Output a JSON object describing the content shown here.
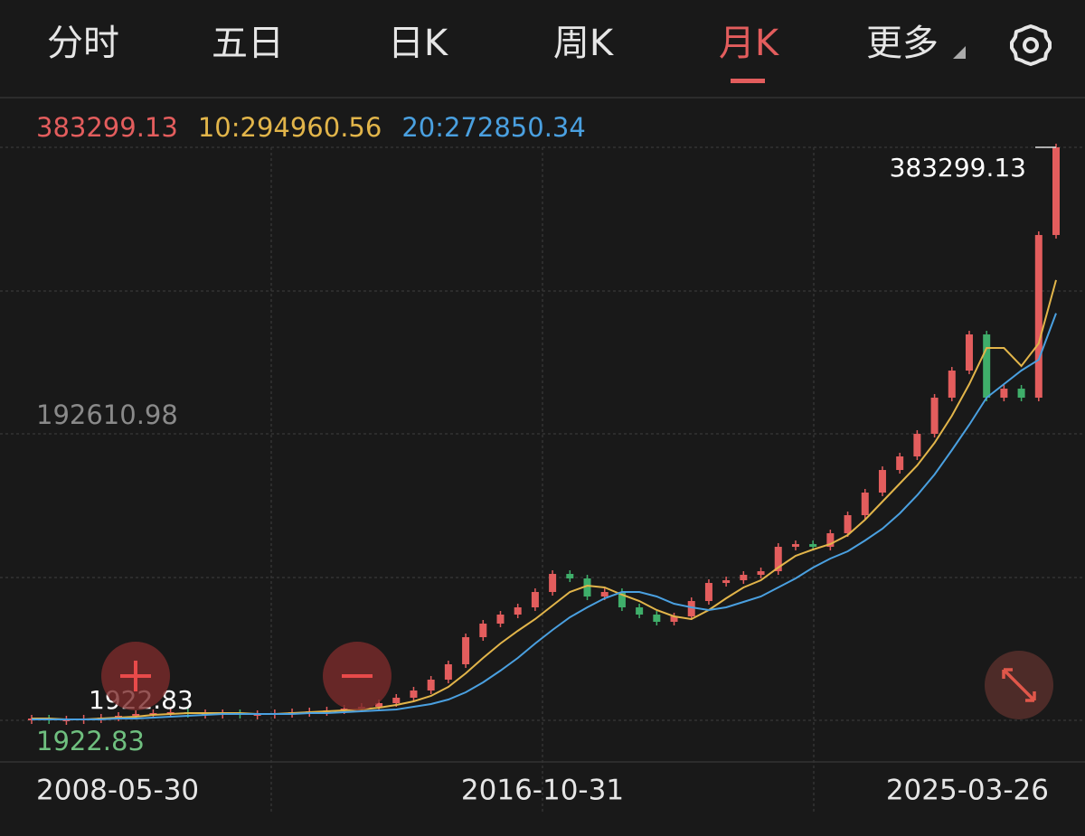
{
  "tabs": [
    "分时",
    "五日",
    "日K",
    "周K",
    "月K",
    "更多"
  ],
  "active_tab": 4,
  "chart_data": {
    "type": "candlestick",
    "last_label": "383299.13",
    "up_color": "#e35d5d",
    "down_color": "#3fae6a",
    "values": [
      3126,
      2525,
      2525,
      3126,
      3728,
      4931,
      6134,
      6735,
      7337,
      6735,
      6735,
      6735,
      6134,
      6134,
      6735,
      7337,
      7938,
      8540,
      9743,
      10946,
      13352,
      16961,
      21773,
      28991,
      39217,
      57262,
      66284,
      72299,
      77111,
      87336,
      99366,
      96359,
      84329,
      87336,
      77111,
      72299,
      67487,
      71098,
      81323,
      93351,
      95156,
      98765,
      101171,
      117411,
      119216,
      117411,
      126434,
      138464,
      153501,
      168539,
      177561,
      192599,
      216659,
      234704,
      258764,
      216659,
      222675,
      216659,
      324929,
      383299.13
    ],
    "ma_lines": [
      {
        "label": "10:294960.56",
        "color": "#e2b54a",
        "values": [
          3126,
          3126,
          2525,
          2525,
          3126,
          3728,
          4329,
          5532,
          6134,
          6735,
          6735,
          6735,
          6735,
          6134,
          6134,
          6735,
          7337,
          7938,
          8540,
          9141,
          10344,
          12149,
          14555,
          18164,
          24179,
          33201,
          43427,
          53051,
          61472,
          69291,
          78314,
          87336,
          91547,
          90344,
          85532,
          81321,
          75306,
          71096,
          69291,
          75306,
          83126,
          90344,
          95156,
          103577,
          111397,
          115607,
          119216,
          125231,
          135456,
          147486,
          159516,
          171546,
          186584,
          204629,
          225681,
          249741,
          249741,
          237711,
          252749,
          294960.56
        ]
      },
      {
        "label": "20:272850.34",
        "color": "#4aa0e0",
        "values": [
          2525,
          2525,
          2525,
          2525,
          2525,
          3126,
          3126,
          3728,
          4329,
          4931,
          5532,
          6134,
          6134,
          6134,
          6134,
          6134,
          6735,
          6735,
          7337,
          7938,
          8540,
          9141,
          10946,
          12750,
          15758,
          20570,
          27186,
          35006,
          43427,
          53051,
          62074,
          70495,
          77111,
          83126,
          87336,
          87336,
          84329,
          79517,
          77111,
          75306,
          77111,
          80720,
          84329,
          90344,
          96359,
          103577,
          109592,
          114404,
          121622,
          129441,
          139667,
          151697,
          165531,
          181772,
          198614,
          216659,
          225681,
          234704,
          241922,
          272850.34
        ]
      }
    ],
    "ylim": [
      1922.83,
      383299.13
    ],
    "yticks": [
      1922.83,
      192610.98
    ],
    "max": 383299.13,
    "min": 1922.83,
    "x_labels": [
      "2008-05-30",
      "2016-10-31",
      "2025-03-26"
    ]
  }
}
